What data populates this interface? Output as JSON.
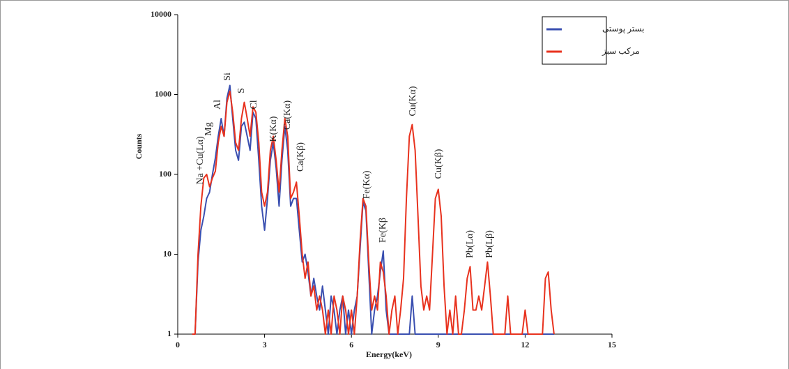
{
  "chart_data": {
    "type": "line",
    "log_y": true,
    "x_label": "Energy(keV)",
    "y_label": "Counts",
    "xlim": [
      0,
      15
    ],
    "xticks": [
      0,
      3,
      6,
      9,
      12,
      15
    ],
    "ylim": [
      1,
      10000
    ],
    "yticks": [
      1,
      10,
      100,
      1000,
      10000
    ],
    "legend_position": "upper right",
    "x": [
      0.5,
      0.6,
      0.7,
      0.8,
      0.9,
      1.0,
      1.1,
      1.2,
      1.3,
      1.4,
      1.5,
      1.6,
      1.7,
      1.8,
      1.9,
      2.0,
      2.1,
      2.2,
      2.3,
      2.4,
      2.5,
      2.6,
      2.7,
      2.8,
      2.9,
      3.0,
      3.1,
      3.2,
      3.3,
      3.4,
      3.5,
      3.6,
      3.7,
      3.8,
      3.9,
      4.0,
      4.1,
      4.2,
      4.3,
      4.4,
      4.5,
      4.6,
      4.7,
      4.8,
      4.9,
      5.0,
      5.1,
      5.2,
      5.3,
      5.4,
      5.5,
      5.6,
      5.7,
      5.8,
      5.9,
      6.0,
      6.1,
      6.2,
      6.3,
      6.4,
      6.5,
      6.6,
      6.7,
      6.8,
      6.9,
      7.0,
      7.1,
      7.2,
      7.3,
      7.4,
      7.5,
      7.6,
      7.7,
      7.8,
      7.9,
      8.0,
      8.1,
      8.2,
      8.3,
      8.4,
      8.5,
      8.6,
      8.7,
      8.8,
      8.9,
      9.0,
      9.1,
      9.2,
      9.3,
      9.4,
      9.5,
      9.6,
      9.7,
      9.8,
      9.9,
      10.0,
      10.1,
      10.2,
      10.3,
      10.4,
      10.5,
      10.6,
      10.7,
      10.8,
      10.9,
      11.0,
      11.1,
      11.2,
      11.3,
      11.4,
      11.5,
      11.6,
      11.7,
      11.8,
      11.9,
      12.0,
      12.1,
      12.2,
      12.3,
      12.4,
      12.5,
      12.6,
      12.7,
      12.8,
      12.9,
      13.0
    ],
    "series": [
      {
        "name": "بستر پوستی",
        "color": "#3a4fb0",
        "values": [
          1,
          1,
          8,
          20,
          30,
          50,
          60,
          100,
          160,
          300,
          500,
          300,
          900,
          1300,
          500,
          200,
          150,
          400,
          450,
          300,
          200,
          600,
          500,
          150,
          40,
          20,
          50,
          150,
          250,
          120,
          40,
          150,
          400,
          200,
          40,
          50,
          50,
          20,
          8,
          10,
          6,
          3,
          5,
          3,
          2,
          4,
          2,
          1,
          3,
          2,
          1,
          2,
          3,
          1,
          2,
          1,
          2,
          3,
          12,
          45,
          35,
          6,
          1,
          2,
          3,
          6,
          11,
          2,
          1,
          1,
          1,
          1,
          1,
          1,
          1,
          1,
          3,
          1,
          1,
          1,
          1,
          1,
          1,
          1,
          1,
          1,
          1,
          1,
          1,
          1,
          1,
          1,
          1,
          1,
          1,
          1,
          1,
          1,
          1,
          1,
          1,
          1,
          1,
          1,
          1,
          1,
          1,
          1,
          1,
          1,
          1,
          1,
          1,
          1,
          1,
          1,
          1,
          1,
          1,
          1,
          1,
          1,
          1,
          1,
          1,
          1
        ]
      },
      {
        "name": "مرکب سبز",
        "color": "#e8321e",
        "values": [
          1,
          1,
          10,
          40,
          90,
          100,
          70,
          90,
          110,
          250,
          400,
          300,
          800,
          1100,
          600,
          250,
          200,
          500,
          800,
          500,
          300,
          700,
          600,
          250,
          60,
          40,
          60,
          200,
          300,
          150,
          60,
          200,
          500,
          300,
          50,
          60,
          80,
          30,
          10,
          5,
          8,
          3,
          4,
          2,
          3,
          2,
          1,
          2,
          1,
          3,
          2,
          1,
          3,
          2,
          1,
          2,
          1,
          3,
          15,
          50,
          40,
          8,
          2,
          3,
          2,
          8,
          6,
          3,
          1,
          2,
          3,
          1,
          2,
          5,
          50,
          300,
          420,
          200,
          30,
          4,
          2,
          3,
          2,
          10,
          50,
          65,
          30,
          4,
          1,
          2,
          1,
          3,
          1,
          1,
          2,
          5,
          7,
          2,
          2,
          3,
          2,
          4,
          8,
          3,
          1,
          1,
          1,
          1,
          1,
          3,
          1,
          1,
          1,
          1,
          1,
          2,
          1,
          1,
          1,
          1,
          1,
          1,
          5,
          6,
          2,
          1
        ]
      }
    ],
    "annotations": [
      "Na +Cu(Lα)",
      "Mg",
      "Al",
      "Si",
      "S",
      "Cl",
      "K(Kα)",
      "Ca(Kα)",
      "Ca(Kβ)",
      "Fe(Kα)",
      "Fe(Kβ",
      "Cu(Kα)",
      "Cu(Kβ)",
      "Pb(Lα)",
      "Pb(Lβ)"
    ]
  }
}
